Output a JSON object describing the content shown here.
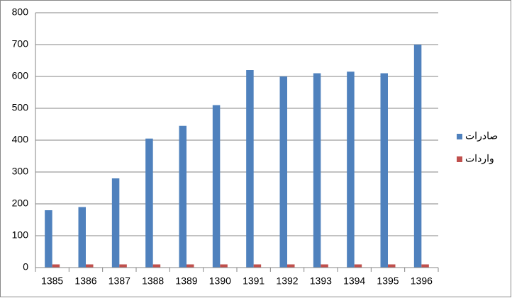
{
  "chart_data": {
    "type": "bar",
    "categories": [
      "1385",
      "1386",
      "1387",
      "1388",
      "1389",
      "1390",
      "1391",
      "1392",
      "1393",
      "1394",
      "1395",
      "1396"
    ],
    "series": [
      {
        "name": "صادرات",
        "color": "#4f81bd",
        "values": [
          180,
          190,
          280,
          405,
          445,
          510,
          620,
          600,
          610,
          615,
          610,
          700
        ]
      },
      {
        "name": "واردات",
        "color": "#c0504d",
        "values": [
          10,
          10,
          10,
          10,
          10,
          10,
          10,
          10,
          10,
          10,
          10,
          10
        ]
      }
    ],
    "ylim": [
      0,
      800
    ],
    "yticks": [
      0,
      100,
      200,
      300,
      400,
      500,
      600,
      700,
      800
    ],
    "grid": true,
    "legend": "right"
  }
}
